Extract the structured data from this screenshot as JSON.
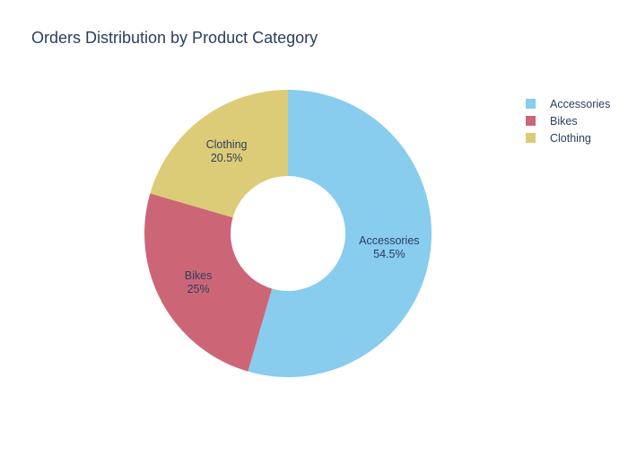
{
  "chart_data": {
    "type": "pie",
    "hole": true,
    "title": "Orders Distribution by Product Category",
    "categories": [
      "Accessories",
      "Bikes",
      "Clothing"
    ],
    "values": [
      54.5,
      25,
      20.5
    ],
    "value_labels": [
      "54.5%",
      "25%",
      "20.5%"
    ],
    "colors": [
      "#88CCEE",
      "#CC6677",
      "#DDCC77"
    ],
    "legend": {
      "position": "top-right",
      "items": [
        "Accessories",
        "Bikes",
        "Clothing"
      ]
    }
  }
}
